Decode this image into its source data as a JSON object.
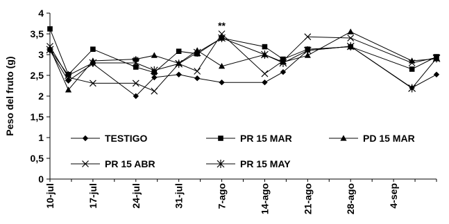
{
  "chart_data": {
    "type": "line",
    "ylabel": "Peso del fruto (g)",
    "ylim": [
      0,
      4
    ],
    "y_ticks": [
      "0",
      "0,5",
      "1",
      "1,5",
      "2",
      "2,5",
      "3",
      "3,5",
      "4"
    ],
    "x_ticks": [
      "10-jul",
      "17-jul",
      "24-jul",
      "31-jul",
      "7-ago",
      "14-ago",
      "21-ago",
      "28-ago",
      "4-sep"
    ],
    "x_range": [
      0,
      63
    ],
    "grid": false,
    "legend": "inside-bottom",
    "annotations": [
      {
        "text": "**",
        "x": 14,
        "y": 2.78
      },
      {
        "text": "**",
        "x": 28,
        "y": 3.62
      }
    ],
    "series": [
      {
        "name": "TESTIGO",
        "marker": "diamond",
        "x": [
          0,
          3,
          7,
          14,
          17,
          21,
          24,
          28,
          35,
          38,
          42,
          49,
          59,
          63
        ],
        "y": [
          3.1,
          2.37,
          2.78,
          2.0,
          2.45,
          2.52,
          2.43,
          2.33,
          2.33,
          2.58,
          3.1,
          3.2,
          2.2,
          2.52
        ]
      },
      {
        "name": "PR 15 MAR",
        "marker": "square",
        "x": [
          0,
          3,
          7,
          14,
          17,
          21,
          24,
          28,
          35,
          38,
          42,
          49,
          59,
          63
        ],
        "y": [
          3.62,
          2.52,
          3.13,
          2.7,
          2.57,
          3.08,
          3.02,
          3.4,
          3.19,
          2.89,
          3.13,
          3.19,
          2.65,
          2.95
        ]
      },
      {
        "name": "PD 15 MAR",
        "marker": "triangle",
        "x": [
          0,
          3,
          7,
          14,
          17,
          21,
          24,
          28,
          35,
          38,
          42,
          49,
          59,
          63
        ],
        "y": [
          3.15,
          2.15,
          2.85,
          2.89,
          2.98,
          2.79,
          3.1,
          2.72,
          3.0,
          2.82,
          2.98,
          3.55,
          2.85,
          2.9
        ]
      },
      {
        "name": "PR 15 ABR",
        "marker": "x",
        "x": [
          0,
          3,
          7,
          14,
          17,
          21,
          24,
          28,
          35,
          38,
          42,
          49,
          59,
          63
        ],
        "y": [
          3.2,
          2.45,
          2.31,
          2.31,
          2.12,
          2.78,
          2.6,
          3.5,
          2.54,
          2.85,
          3.43,
          3.4,
          2.8,
          2.93
        ]
      },
      {
        "name": "PR 15 MAY",
        "marker": "star",
        "x": [
          0,
          3,
          7,
          14,
          17,
          21,
          24,
          28,
          35,
          38,
          42,
          49,
          59,
          63
        ],
        "y": [
          3.12,
          2.5,
          2.8,
          2.8,
          2.62,
          2.78,
          3.05,
          3.4,
          3.0,
          2.8,
          3.1,
          3.2,
          2.19,
          2.91
        ]
      }
    ]
  }
}
